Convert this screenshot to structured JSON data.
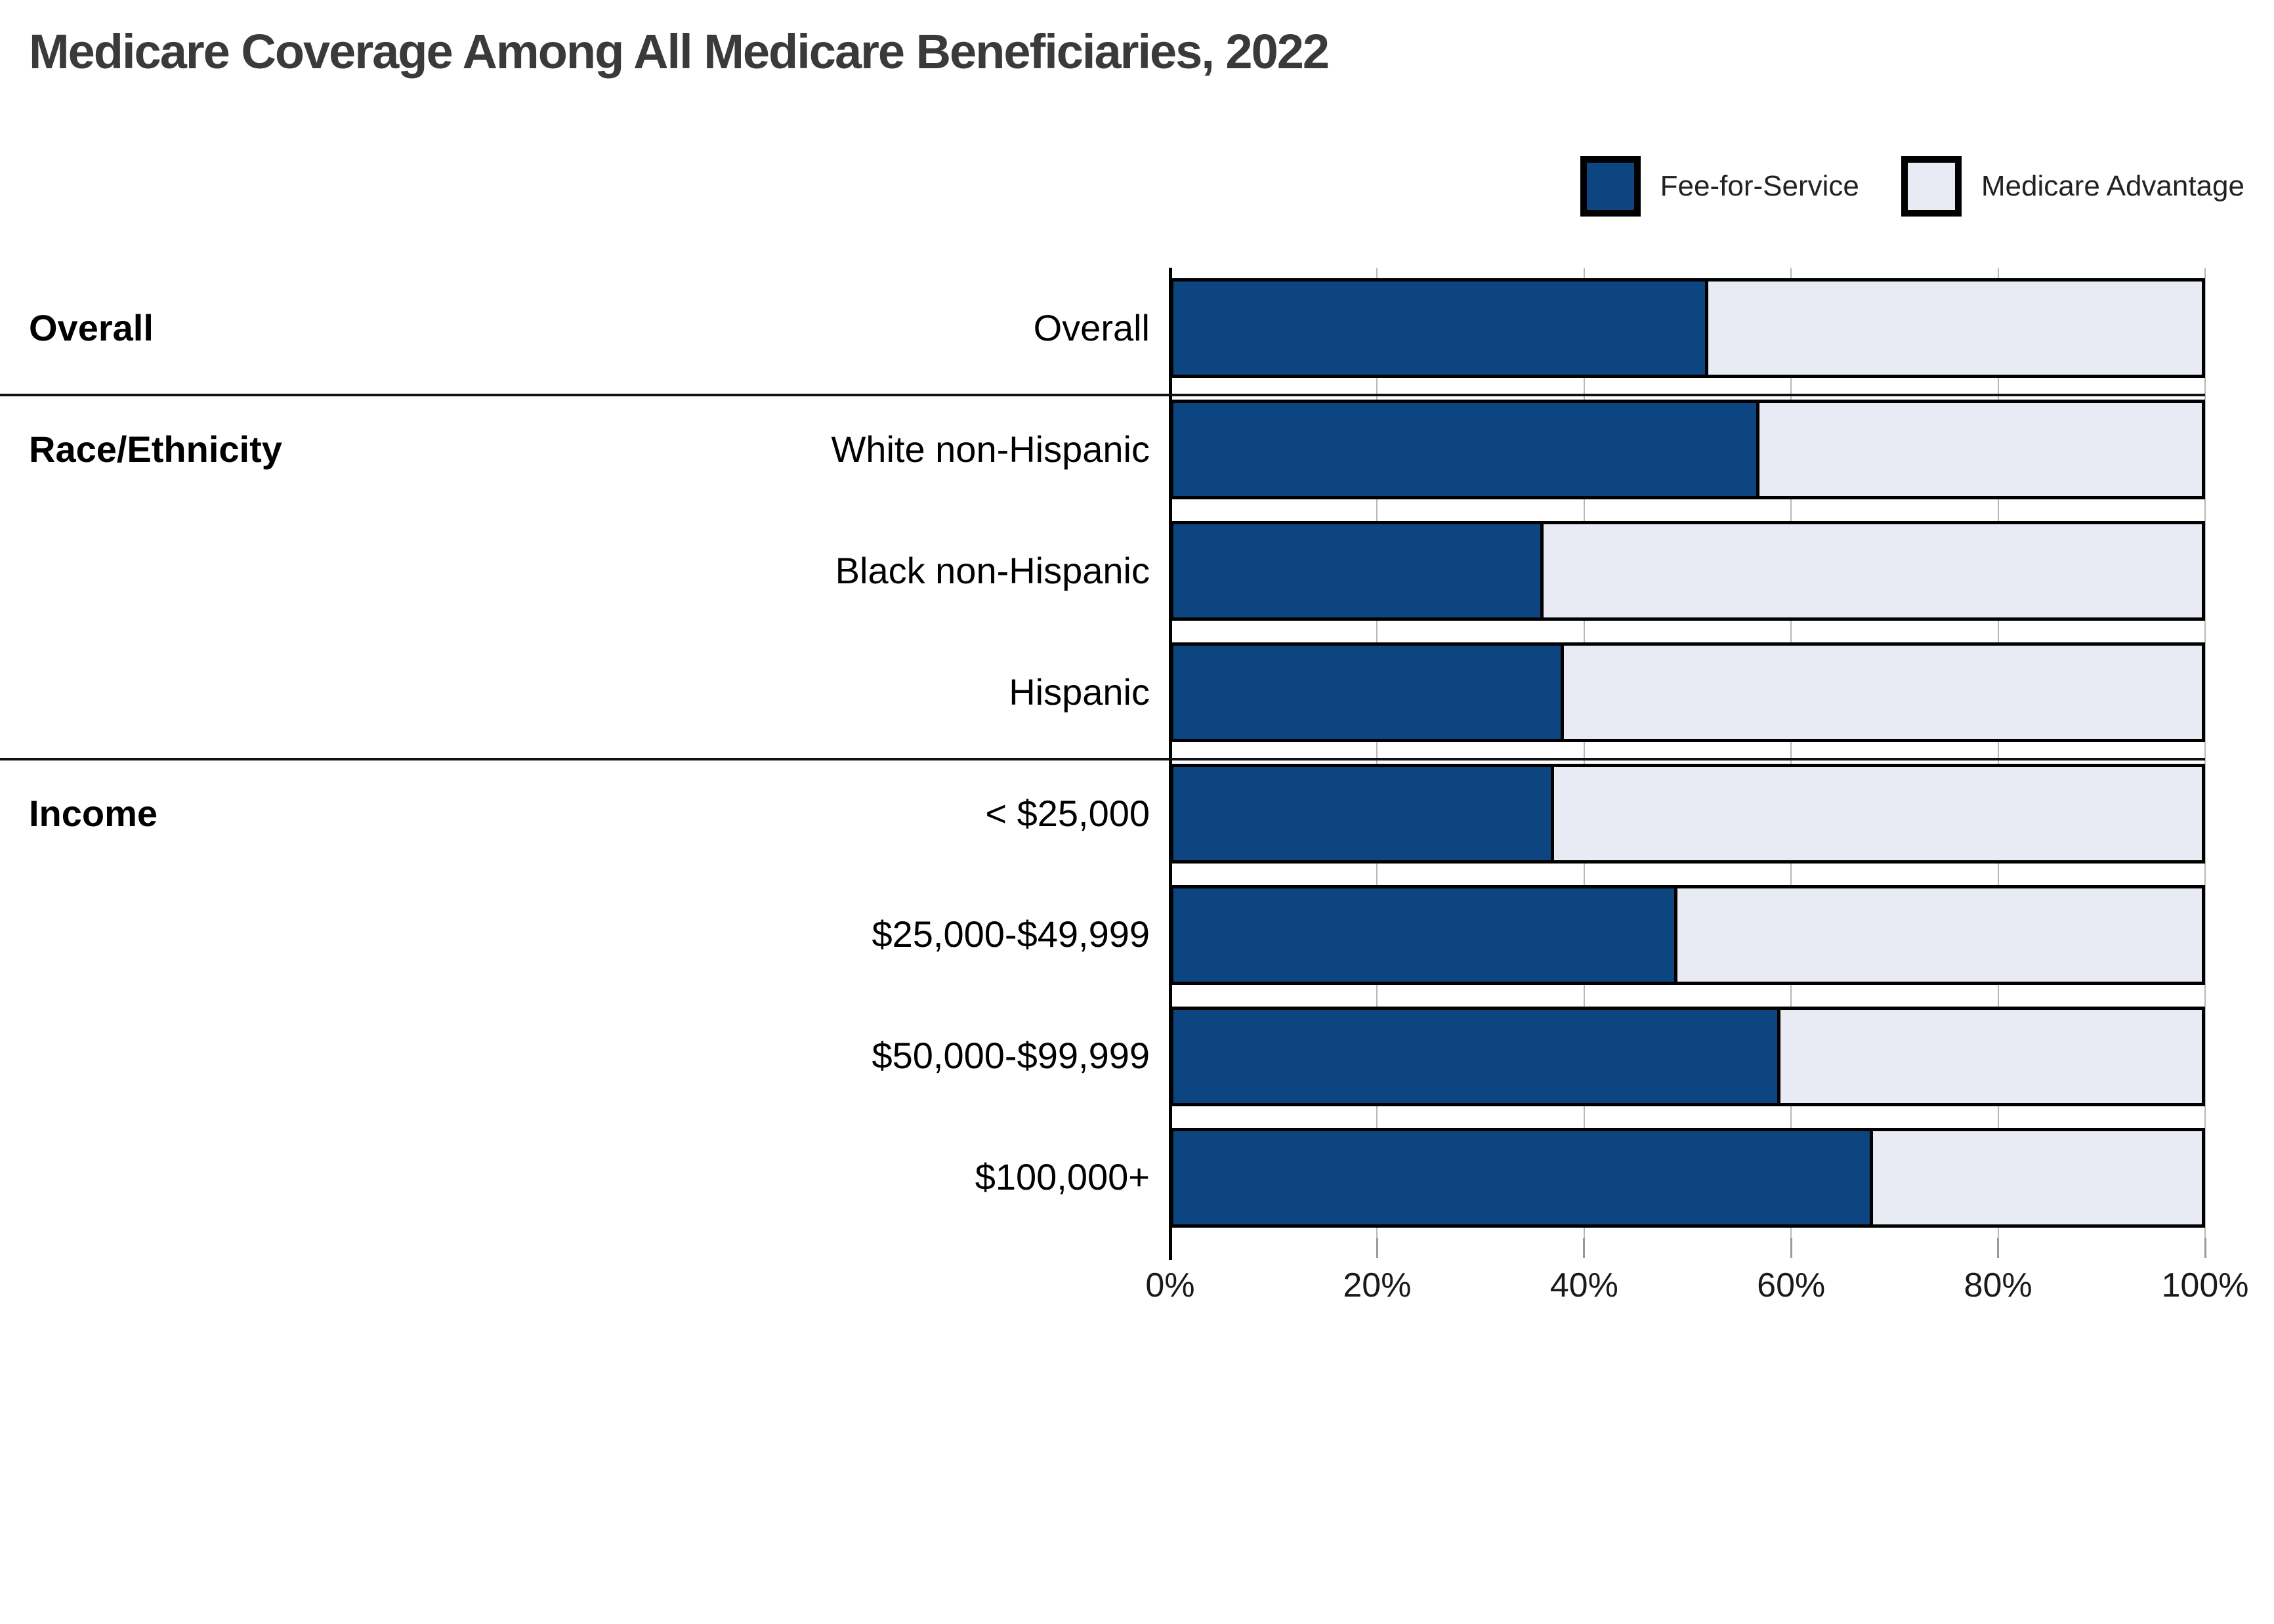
{
  "title": "Medicare Coverage Among All Medicare Beneficiaries, 2022",
  "chart_data": {
    "type": "bar",
    "variant": "horizontal-stacked-100-percent",
    "title": "Medicare Coverage Among All Medicare Beneficiaries, 2022",
    "categories": [
      "Overall",
      "White non-Hispanic",
      "Black non-Hispanic",
      "Hispanic",
      "< $25,000",
      "$25,000-$49,999",
      "$50,000-$99,999",
      "$100,000+"
    ],
    "series": [
      {
        "name": "Fee-for-Service",
        "color": "#0c4580",
        "values": [
          52,
          57,
          36,
          38,
          37,
          49,
          59,
          68
        ]
      },
      {
        "name": "Medicare Advantage",
        "color": "#e8ebf4",
        "values": [
          48,
          43,
          64,
          62,
          63,
          51,
          41,
          32
        ]
      }
    ],
    "groups": [
      {
        "label": "Overall",
        "first_row": 0,
        "last_row": 0
      },
      {
        "label": "Race/Ethnicity",
        "first_row": 1,
        "last_row": 3
      },
      {
        "label": "Income",
        "first_row": 4,
        "last_row": 7
      }
    ],
    "x_tick_labels": [
      "0%",
      "20%",
      "40%",
      "60%",
      "80%",
      "100%"
    ],
    "x_tick_values": [
      0,
      20,
      40,
      60,
      80,
      100
    ],
    "xlim": [
      0,
      100
    ],
    "unit": "%",
    "legend_position": "top-right",
    "grid": "vertical",
    "colors": {
      "bar_border": "#000000",
      "gridline": "#b8b8b8",
      "tick": "#999999",
      "axis": "#000000",
      "separator": "#111111",
      "title_text": "#3a3a3a"
    }
  }
}
